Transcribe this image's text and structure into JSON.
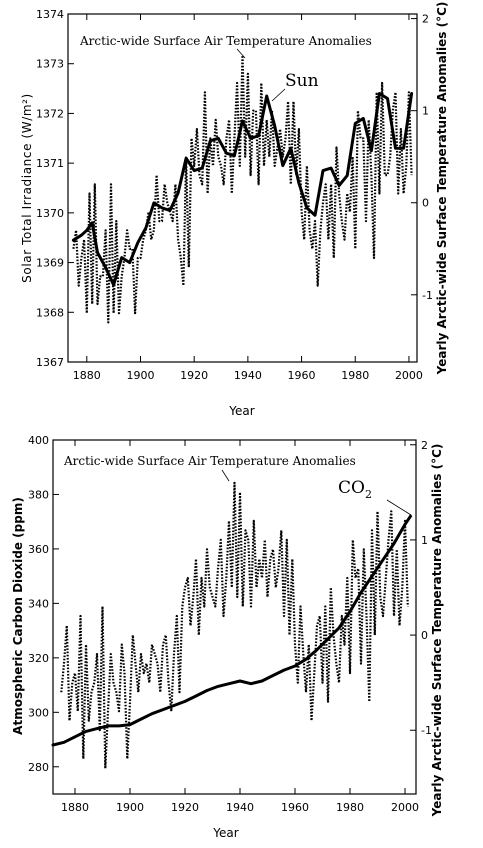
{
  "chart_data": [
    {
      "type": "line",
      "annotation": "Arctic-wide Surface Air Temperature Anomalies",
      "series_label": "Sun",
      "xlabel": "Year",
      "ylabel": "Solar Total Irradiance (W/m²)",
      "y2label": "Yearly Arctic-wide Surface Temperature Anomalies (°C)",
      "xlim": [
        1873,
        2003
      ],
      "ylim": [
        1367,
        1374
      ],
      "y2lim": [
        -1.73,
        2.05
      ],
      "xticks": [
        1880,
        1900,
        1920,
        1940,
        1960,
        1980,
        2000
      ],
      "yticks": [
        1367,
        1368,
        1369,
        1370,
        1371,
        1372,
        1373,
        1374
      ],
      "y2ticks": [
        -1,
        0,
        1,
        2
      ],
      "grid": false,
      "solid_x": [
        1875,
        1878,
        1880,
        1882,
        1884,
        1887,
        1890,
        1893,
        1896,
        1899,
        1902,
        1905,
        1908,
        1911,
        1914,
        1917,
        1920,
        1923,
        1926,
        1929,
        1932,
        1935,
        1938,
        1941,
        1944,
        1947,
        1950,
        1953,
        1956,
        1959,
        1962,
        1965,
        1968,
        1971,
        1974,
        1977,
        1980,
        1983,
        1986,
        1989,
        1992,
        1995,
        1998,
        2001
      ],
      "solid_y": [
        1369.45,
        1369.55,
        1369.65,
        1369.8,
        1369.2,
        1368.9,
        1368.55,
        1369.1,
        1369.0,
        1369.4,
        1369.7,
        1370.2,
        1370.1,
        1370.05,
        1370.4,
        1371.1,
        1370.85,
        1370.9,
        1371.45,
        1371.5,
        1371.2,
        1371.15,
        1371.85,
        1371.5,
        1371.55,
        1372.35,
        1371.75,
        1370.95,
        1371.3,
        1370.6,
        1370.1,
        1369.95,
        1370.85,
        1370.9,
        1370.55,
        1370.75,
        1371.8,
        1371.9,
        1371.25,
        1372.4,
        1372.3,
        1371.3,
        1371.3,
        1372.4
      ],
      "dotted_x": [
        1875,
        1876,
        1877,
        1878,
        1879,
        1880,
        1881,
        1882,
        1883,
        1884,
        1885,
        1886,
        1887,
        1888,
        1889,
        1890,
        1891,
        1892,
        1893,
        1894,
        1895,
        1896,
        1897,
        1898,
        1899,
        1900,
        1901,
        1902,
        1903,
        1904,
        1905,
        1906,
        1907,
        1908,
        1909,
        1910,
        1911,
        1912,
        1913,
        1914,
        1915,
        1916,
        1917,
        1918,
        1919,
        1920,
        1921,
        1922,
        1923,
        1924,
        1925,
        1926,
        1927,
        1928,
        1929,
        1930,
        1931,
        1932,
        1933,
        1934,
        1935,
        1936,
        1937,
        1938,
        1939,
        1940,
        1941,
        1942,
        1943,
        1944,
        1945,
        1946,
        1947,
        1948,
        1949,
        1950,
        1951,
        1952,
        1953,
        1954,
        1955,
        1956,
        1957,
        1958,
        1959,
        1960,
        1961,
        1962,
        1963,
        1964,
        1965,
        1966,
        1967,
        1968,
        1969,
        1970,
        1971,
        1972,
        1973,
        1974,
        1975,
        1976,
        1977,
        1978,
        1979,
        1980,
        1981,
        1982,
        1983,
        1984,
        1985,
        1986,
        1987,
        1988,
        1989,
        1990,
        1991,
        1992,
        1993,
        1994,
        1995,
        1996,
        1997,
        1998,
        1999,
        2000,
        2001
      ],
      "dotted_y": [
        -0.5,
        -0.3,
        -0.9,
        -0.6,
        -0.4,
        -1.2,
        0.1,
        -1.1,
        0.2,
        -1.1,
        -0.8,
        -0.8,
        -0.3,
        -1.3,
        0.2,
        -1.2,
        -0.2,
        -1.2,
        -0.8,
        -0.6,
        -0.3,
        -0.5,
        -0.5,
        -1.2,
        -0.6,
        -0.6,
        -0.4,
        -0.3,
        -0.1,
        -0.4,
        -0.3,
        0.3,
        -0.2,
        -0.2,
        0.2,
        0.0,
        -0.1,
        -0.2,
        0.2,
        -0.4,
        -0.6,
        -0.9,
        0.5,
        -0.7,
        0.7,
        0.4,
        0.8,
        0.3,
        0.2,
        1.2,
        0.1,
        0.7,
        0.4,
        0.9,
        0.5,
        0.4,
        0.2,
        0.7,
        0.9,
        0.1,
        0.7,
        1.3,
        0.4,
        1.6,
        0.5,
        1.4,
        0.3,
        1.0,
        1.0,
        0.2,
        1.3,
        0.4,
        0.9,
        0.5,
        1.0,
        0.4,
        0.6,
        0.8,
        0.5,
        0.7,
        1.1,
        0.2,
        1.1,
        0.3,
        0.8,
        -0.1,
        -0.4,
        0.4,
        -0.3,
        -0.5,
        -0.2,
        -0.9,
        -0.3,
        0.0,
        0.2,
        -0.4,
        0.2,
        -0.6,
        0.6,
        0.1,
        -0.2,
        -0.4,
        0.1,
        -0.1,
        0.5,
        -0.5,
        1.0,
        0.7,
        0.7,
        -0.2,
        0.9,
        0.3,
        -0.6,
        1.2,
        0.1,
        1.3,
        0.3,
        0.3,
        0.5,
        1.0,
        1.2,
        0.1,
        0.8,
        0.1,
        0.4,
        1.2,
        0.3
      ]
    },
    {
      "type": "line",
      "annotation": "Arctic-wide Surface Air Temperature Anomalies",
      "series_label_main": "CO",
      "series_label_sub": "2",
      "xlabel": "Year",
      "ylabel": "Atmospheric Carbon Dioxide (ppm)",
      "y2label": "Yearly Arctic-wide Surface Temperature Anomalies (°C)",
      "xlim": [
        1872,
        2004
      ],
      "ylim": [
        270,
        400
      ],
      "y2lim": [
        -1.67,
        2.05
      ],
      "xticks": [
        1880,
        1900,
        1920,
        1940,
        1960,
        1980,
        2000
      ],
      "yticks": [
        280,
        300,
        320,
        340,
        360,
        380,
        400
      ],
      "y2ticks": [
        -1,
        0,
        1,
        2
      ],
      "grid": false,
      "solid_x": [
        1872,
        1876,
        1880,
        1884,
        1888,
        1892,
        1896,
        1900,
        1904,
        1908,
        1912,
        1916,
        1920,
        1924,
        1928,
        1932,
        1936,
        1940,
        1944,
        1948,
        1952,
        1956,
        1960,
        1964,
        1968,
        1972,
        1976,
        1980,
        1984,
        1988,
        1992,
        1996,
        2000,
        2002
      ],
      "solid_y": [
        288,
        289,
        291,
        293,
        294,
        295,
        295,
        295.5,
        297.5,
        299.5,
        301,
        302.5,
        304,
        306,
        308,
        309.5,
        310.5,
        311.5,
        310.5,
        311.5,
        313.5,
        315.5,
        317,
        319.5,
        323,
        327,
        331,
        337,
        344,
        350,
        356,
        362,
        369,
        372
      ],
      "dotted_x": [
        1875,
        1876,
        1877,
        1878,
        1879,
        1880,
        1881,
        1882,
        1883,
        1884,
        1885,
        1886,
        1887,
        1888,
        1889,
        1890,
        1891,
        1892,
        1893,
        1894,
        1895,
        1896,
        1897,
        1898,
        1899,
        1900,
        1901,
        1902,
        1903,
        1904,
        1905,
        1906,
        1907,
        1908,
        1909,
        1910,
        1911,
        1912,
        1913,
        1914,
        1915,
        1916,
        1917,
        1918,
        1919,
        1920,
        1921,
        1922,
        1923,
        1924,
        1925,
        1926,
        1927,
        1928,
        1929,
        1930,
        1931,
        1932,
        1933,
        1934,
        1935,
        1936,
        1937,
        1938,
        1939,
        1940,
        1941,
        1942,
        1943,
        1944,
        1945,
        1946,
        1947,
        1948,
        1949,
        1950,
        1951,
        1952,
        1953,
        1954,
        1955,
        1956,
        1957,
        1958,
        1959,
        1960,
        1961,
        1962,
        1963,
        1964,
        1965,
        1966,
        1967,
        1968,
        1969,
        1970,
        1971,
        1972,
        1973,
        1974,
        1975,
        1976,
        1977,
        1978,
        1979,
        1980,
        1981,
        1982,
        1983,
        1984,
        1985,
        1986,
        1987,
        1988,
        1989,
        1990,
        1991,
        1992,
        1993,
        1994,
        1995,
        1996,
        1997,
        1998,
        1999,
        2000,
        2001
      ],
      "dotted_y": [
        -0.6,
        -0.3,
        0.1,
        -0.9,
        -0.5,
        -0.4,
        -0.8,
        0.2,
        -1.3,
        -0.1,
        -0.9,
        -0.6,
        -0.5,
        -0.2,
        -1.0,
        0.3,
        -1.4,
        -0.8,
        -0.2,
        -0.5,
        -0.6,
        -0.8,
        -0.1,
        -0.4,
        -1.3,
        -0.7,
        0.0,
        -0.3,
        -0.6,
        -0.2,
        -0.4,
        -0.3,
        -0.5,
        -0.1,
        -0.2,
        -0.3,
        -0.6,
        -0.1,
        0.0,
        -0.5,
        -0.8,
        -0.2,
        0.2,
        -0.6,
        0.3,
        0.5,
        0.6,
        0.1,
        0.4,
        0.8,
        0.0,
        0.6,
        0.3,
        0.9,
        0.5,
        0.4,
        0.3,
        0.7,
        1.0,
        0.2,
        0.6,
        1.2,
        0.5,
        1.6,
        0.4,
        1.5,
        0.3,
        1.1,
        1.0,
        0.3,
        1.2,
        0.5,
        0.8,
        0.6,
        1.0,
        0.4,
        0.8,
        0.9,
        0.5,
        0.7,
        1.1,
        0.2,
        1.0,
        0.0,
        0.8,
        -0.1,
        -0.5,
        0.3,
        -0.2,
        -0.6,
        -0.1,
        -0.9,
        -0.4,
        0.1,
        0.2,
        -0.5,
        0.3,
        -0.7,
        0.5,
        0.0,
        -0.3,
        -0.5,
        0.2,
        -0.1,
        0.6,
        -0.4,
        1.0,
        0.6,
        0.7,
        -0.3,
        0.9,
        0.2,
        -0.7,
        1.1,
        0.0,
        1.3,
        0.4,
        0.2,
        0.6,
        1.0,
        1.3,
        0.2,
        0.9,
        0.1,
        0.5,
        1.2,
        0.3
      ]
    }
  ]
}
